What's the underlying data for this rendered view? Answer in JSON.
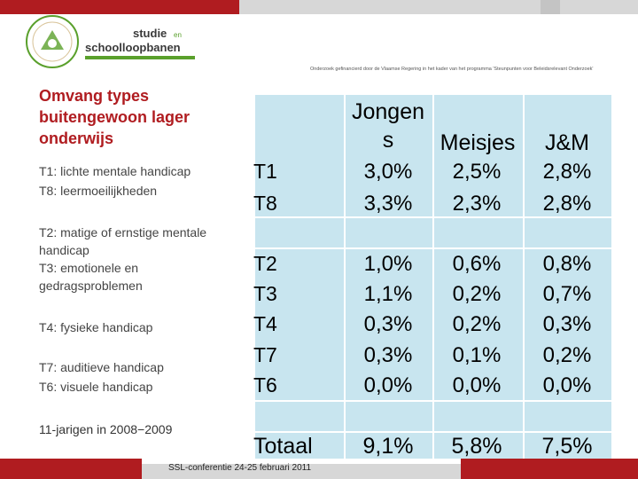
{
  "brand": {
    "line1": "studie",
    "connector": "en",
    "line2": "schoolloopbanen"
  },
  "support_text": "Onderzoek gefinancierd door de Vlaamse Regering in het kader van het programma 'Steunpunten voor Beleidsrelevant Onderzoek'",
  "title": "Omvang types buitengewoon lager onderwijs",
  "groups": [
    {
      "lines": [
        "T1: lichte mentale handicap",
        "T8: leermoeilijkheden"
      ]
    },
    {
      "lines": [
        "T2: matige of ernstige mentale handicap",
        "T3: emotionele en gedragsproblemen"
      ]
    },
    {
      "lines": [
        "T4: fysieke handicap"
      ]
    },
    {
      "lines": [
        "T7: auditieve handicap",
        "T6: visuele handicap"
      ]
    }
  ],
  "age_note": "11-jarigen in 2008−2009",
  "table": {
    "headers": [
      "Jongens",
      "Meisjes",
      "J&M"
    ],
    "rows": [
      {
        "code": "T1",
        "values": [
          "3,0%",
          "2,5%",
          "2,8%"
        ]
      },
      {
        "code": "T8",
        "values": [
          "3,3%",
          "2,3%",
          "2,8%"
        ]
      },
      {
        "code": "T2",
        "values": [
          "1,0%",
          "0,6%",
          "0,8%"
        ]
      },
      {
        "code": "T3",
        "values": [
          "1,1%",
          "0,2%",
          "0,7%"
        ]
      },
      {
        "code": "T4",
        "values": [
          "0,3%",
          "0,2%",
          "0,3%"
        ]
      },
      {
        "code": "T7",
        "values": [
          "0,3%",
          "0,1%",
          "0,2%"
        ]
      },
      {
        "code": "T6",
        "values": [
          "0,0%",
          "0,0%",
          "0,0%"
        ]
      },
      {
        "code": "Totaal",
        "values": [
          "9,1%",
          "5,8%",
          "7,5%"
        ]
      }
    ]
  },
  "footer": "SSL-conferentie 24-25 februari 2011",
  "colors": {
    "accent": "#b01c20",
    "table_fill": "#c8e5ef",
    "green": "#5aa02c"
  }
}
